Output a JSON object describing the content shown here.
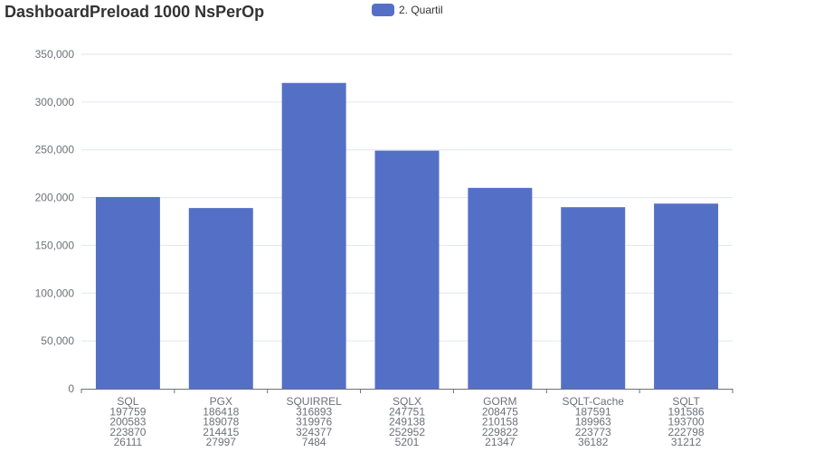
{
  "chart_data": {
    "type": "bar",
    "title": "DashboardPreload 1000 NsPerOp",
    "categories": [
      [
        "SQL",
        "197759",
        "200583",
        "223870",
        "26111"
      ],
      [
        "PGX",
        "186418",
        "189078",
        "214415",
        "27997"
      ],
      [
        "SQUIRREL",
        "316893",
        "319976",
        "324377",
        "7484"
      ],
      [
        "SQLX",
        "247751",
        "249138",
        "252952",
        "5201"
      ],
      [
        "GORM",
        "208475",
        "210158",
        "229822",
        "21347"
      ],
      [
        "SQLT-Cache",
        "187591",
        "189963",
        "223773",
        "36182"
      ],
      [
        "SQLT",
        "191586",
        "193700",
        "222798",
        "31212"
      ]
    ],
    "series": [
      {
        "name": "2. Quartil",
        "values": [
          200583,
          189078,
          319976,
          249138,
          210158,
          189963,
          193700
        ]
      }
    ],
    "ylim": [
      0,
      350000
    ],
    "yticks": [
      0,
      50000,
      100000,
      150000,
      200000,
      250000,
      300000,
      350000
    ],
    "ytick_labels": [
      "0",
      "50,000",
      "100,000",
      "150,000",
      "200,000",
      "250,000",
      "300,000",
      "350,000"
    ],
    "xlabel": "",
    "ylabel": "",
    "legend_position": "top-center",
    "grid": true,
    "colors": {
      "bar": "#5470c6",
      "grid": "#e0e6f1",
      "axis": "#6e7079",
      "text": "#333333"
    }
  }
}
